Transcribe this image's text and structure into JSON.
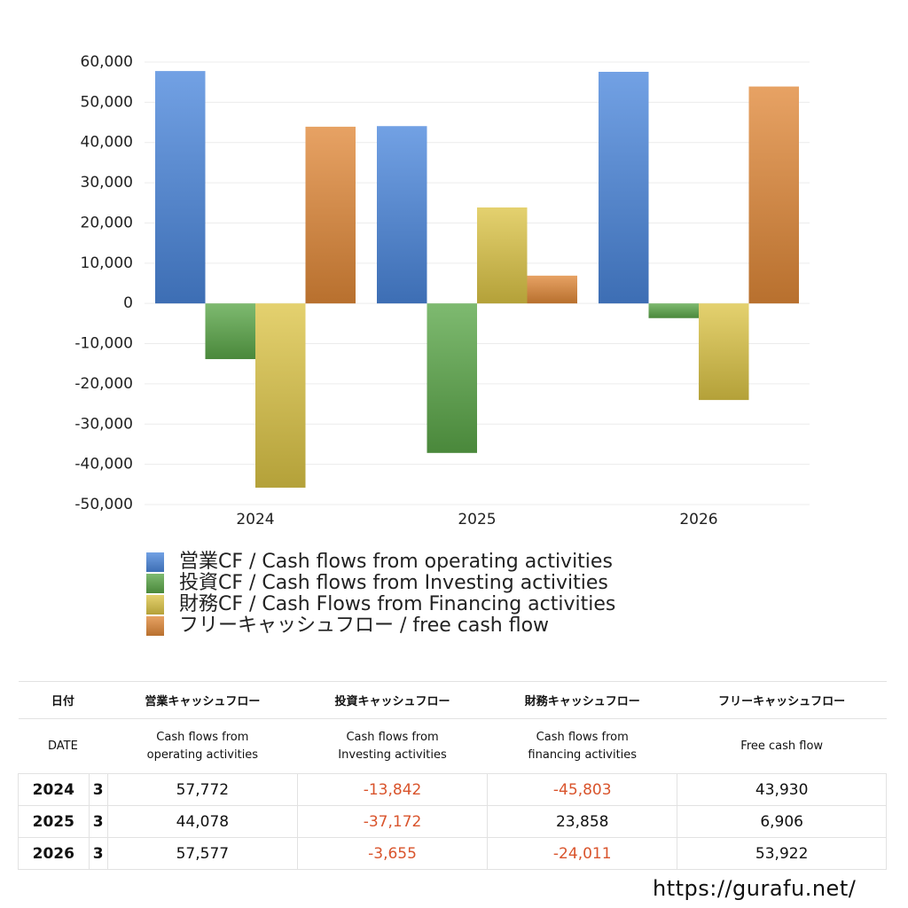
{
  "chart_data": {
    "type": "bar",
    "categories": [
      "2024",
      "2025",
      "2026"
    ],
    "series": [
      {
        "name": "営業CF / Cash flows from operating activities",
        "color": "#4a86dc",
        "values": [
          57772,
          44078,
          57577
        ],
        "value_labels": [
          "57,772",
          "44,078",
          "57,577"
        ]
      },
      {
        "name": "投資CF / Cash flows from Investing activities",
        "color": "#5aa648",
        "values": [
          -13842,
          -37172,
          -3655
        ],
        "value_labels": [
          "-13,842",
          "-37,172",
          "-3,655"
        ]
      },
      {
        "name": "財務CF / Cash Flows from Financing activities",
        "color": "#dcc446",
        "values": [
          -45803,
          23858,
          -24011
        ],
        "value_labels": [
          "-45,803",
          "23,858",
          "-24,011"
        ]
      },
      {
        "name": "フリーキャッシュフロー / free cash flow",
        "color": "#e08838",
        "values": [
          43930,
          6906,
          53922
        ],
        "value_labels": [
          "43,930",
          "6,906",
          "53,922"
        ]
      }
    ],
    "ylim": [
      -50000,
      60000
    ],
    "yticks": [
      {
        "value": -50000,
        "label": "-50,000"
      },
      {
        "value": -40000,
        "label": "-40,000"
      },
      {
        "value": -30000,
        "label": "-30,000"
      },
      {
        "value": -20000,
        "label": "-20,000"
      },
      {
        "value": -10000,
        "label": "-10,000"
      },
      0,
      {
        "value": 10000,
        "label": "10,000"
      },
      {
        "value": 20000,
        "label": "20,000"
      },
      {
        "value": 30000,
        "label": "30,000"
      },
      {
        "value": 40000,
        "label": "40,000"
      },
      {
        "value": 50000,
        "label": "50,000"
      },
      {
        "value": 60000,
        "label": "60,000"
      }
    ],
    "grid": true,
    "legend": "bottom"
  },
  "table": {
    "date_header": "日付",
    "date_subheader": "DATE",
    "headers": [
      "営業キャッシュフロー",
      "投資キャッシュフロー",
      "財務キャッシュフロー",
      "フリーキャッシュフロー"
    ],
    "subheaders": [
      "Cash flows from\noperating activities",
      "Cash flows from\nInvesting activities",
      "Cash flows from\nfinancing activities",
      "Free cash flow"
    ],
    "months": [
      "3",
      "3",
      "3"
    ]
  },
  "watermark": "https://gurafu.net/"
}
